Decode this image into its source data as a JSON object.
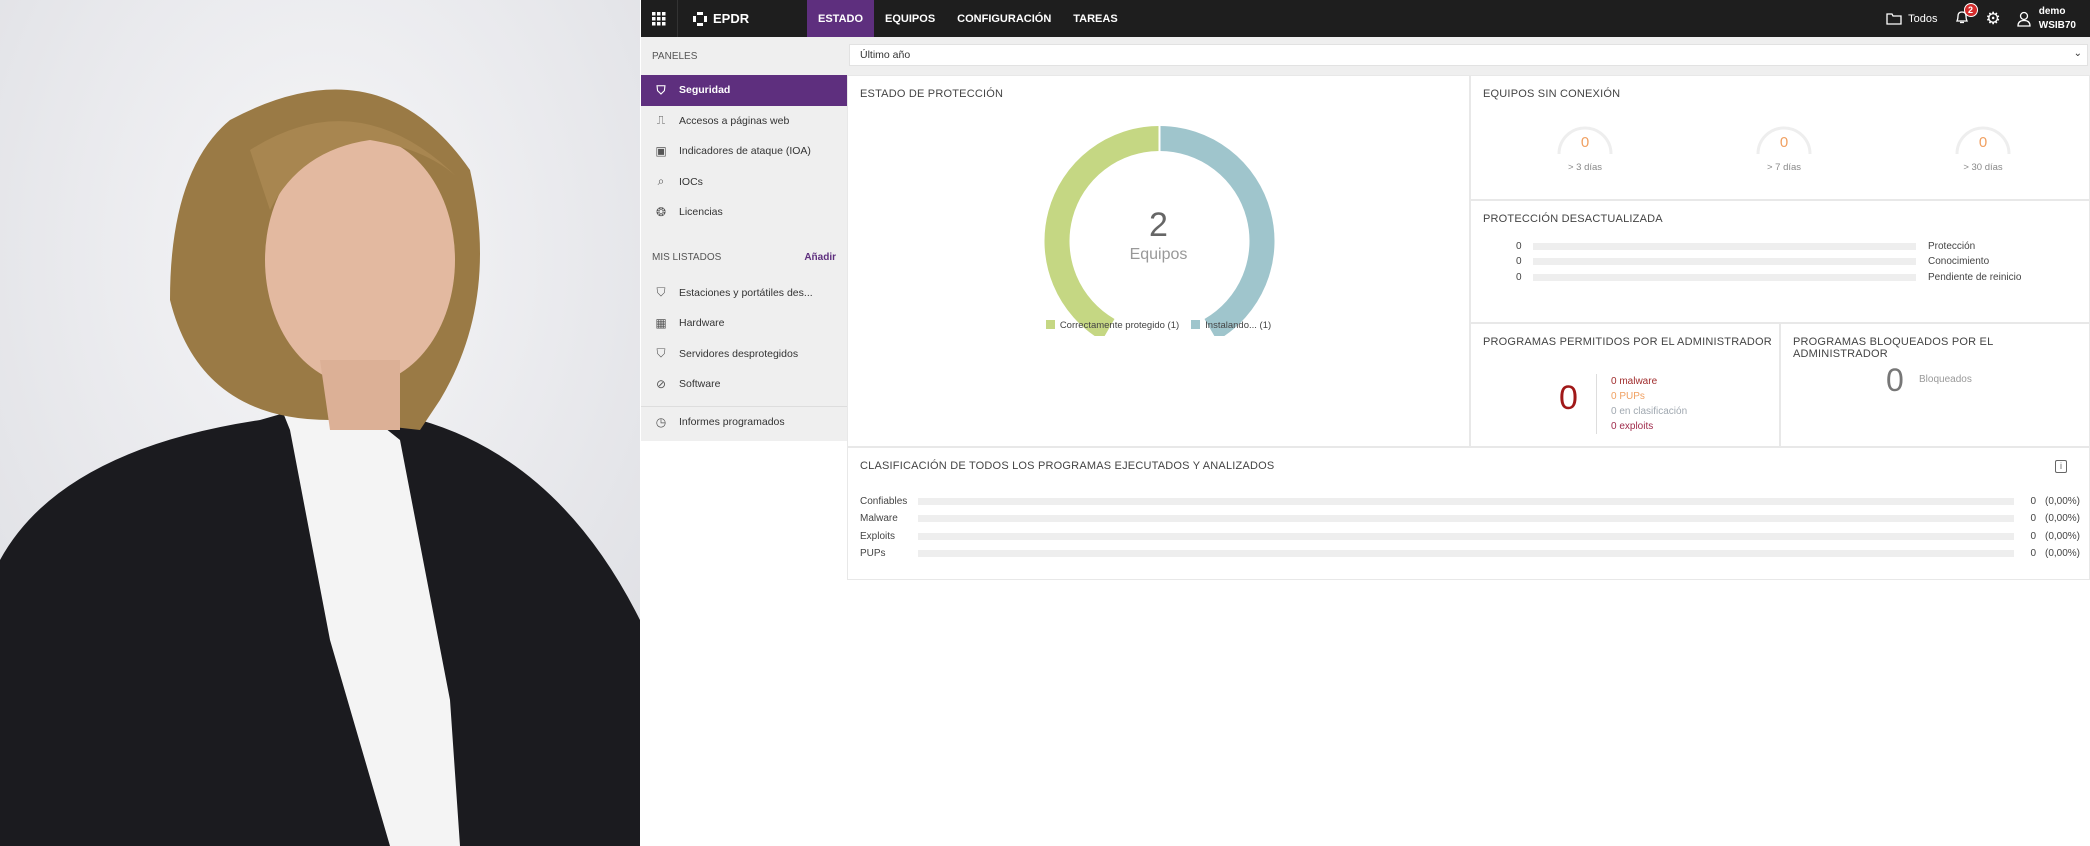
{
  "header": {
    "logo": "EPDR",
    "nav": [
      "ESTADO",
      "EQUIPOS",
      "CONFIGURACIÓN",
      "TAREAS"
    ],
    "active_nav": "ESTADO",
    "folder_label": "Todos",
    "notifications": "2",
    "user_name": "demo",
    "user_org": "WSIB70"
  },
  "sidebar": {
    "panels_title": "PANELES",
    "items": [
      {
        "label": "Seguridad",
        "icon": "shield-icon"
      },
      {
        "label": "Accesos a páginas web",
        "icon": "web-activity-icon"
      },
      {
        "label": "Indicadores de ataque (IOA)",
        "icon": "ioa-icon"
      },
      {
        "label": "IOCs",
        "icon": "ioc-search-icon"
      },
      {
        "label": "Licencias",
        "icon": "license-icon"
      }
    ],
    "lists_title": "MIS LISTADOS",
    "add_label": "Añadir",
    "lists": [
      {
        "label": "Estaciones y portátiles des...",
        "icon": "shield-alert-icon"
      },
      {
        "label": "Hardware",
        "icon": "chip-icon"
      },
      {
        "label": "Servidores desprotegidos",
        "icon": "shield-alert-icon"
      },
      {
        "label": "Software",
        "icon": "software-icon"
      }
    ],
    "reports": {
      "label": "Informes programados",
      "icon": "clock-icon"
    }
  },
  "filter": {
    "value": "Último año"
  },
  "proteccion": {
    "title": "ESTADO DE PROTECCIÓN",
    "total": "2",
    "unit": "Equipos",
    "segments": [
      {
        "label": "Correctamente protegido (1)",
        "value": 1,
        "color": "#c5d783"
      },
      {
        "label": "Instalando... (1)",
        "value": 1,
        "color": "#9fc5cc"
      }
    ]
  },
  "sin_conexion": {
    "title": "EQUIPOS SIN CONEXIÓN",
    "gauges": [
      {
        "value": "0",
        "label": "> 3 días"
      },
      {
        "value": "0",
        "label": "> 7 días"
      },
      {
        "value": "0",
        "label": "> 30 días"
      }
    ]
  },
  "desactualizada": {
    "title": "PROTECCIÓN DESACTUALIZADA",
    "rows": [
      {
        "value": "0",
        "label": "Protección"
      },
      {
        "value": "0",
        "label": "Conocimiento"
      },
      {
        "value": "0",
        "label": "Pendiente de reinicio"
      }
    ]
  },
  "permitidos": {
    "title": "PROGRAMAS PERMITIDOS POR EL ADMINISTRADOR",
    "total": "0",
    "items": [
      {
        "label": "0 malware",
        "color": "#a02c2c"
      },
      {
        "label": "0 PUPs",
        "color": "#f0a061"
      },
      {
        "label": "0 en clasificación",
        "color": "#a0a8b0"
      },
      {
        "label": "0 exploits",
        "color": "#a02c4c"
      }
    ]
  },
  "bloqueados": {
    "title": "PROGRAMAS BLOQUEADOS POR EL ADMINISTRADOR",
    "total": "0",
    "label": "Bloqueados"
  },
  "clasificacion": {
    "title": "CLASIFICACIÓN DE TODOS LOS PROGRAMAS EJECUTADOS Y ANALIZADOS",
    "rows": [
      {
        "label": "Confiables",
        "count": "0",
        "pct": "(0,00%)"
      },
      {
        "label": "Malware",
        "count": "0",
        "pct": "(0,00%)"
      },
      {
        "label": "Exploits",
        "count": "0",
        "pct": "(0,00%)"
      },
      {
        "label": "PUPs",
        "count": "0",
        "pct": "(0,00%)"
      }
    ]
  }
}
